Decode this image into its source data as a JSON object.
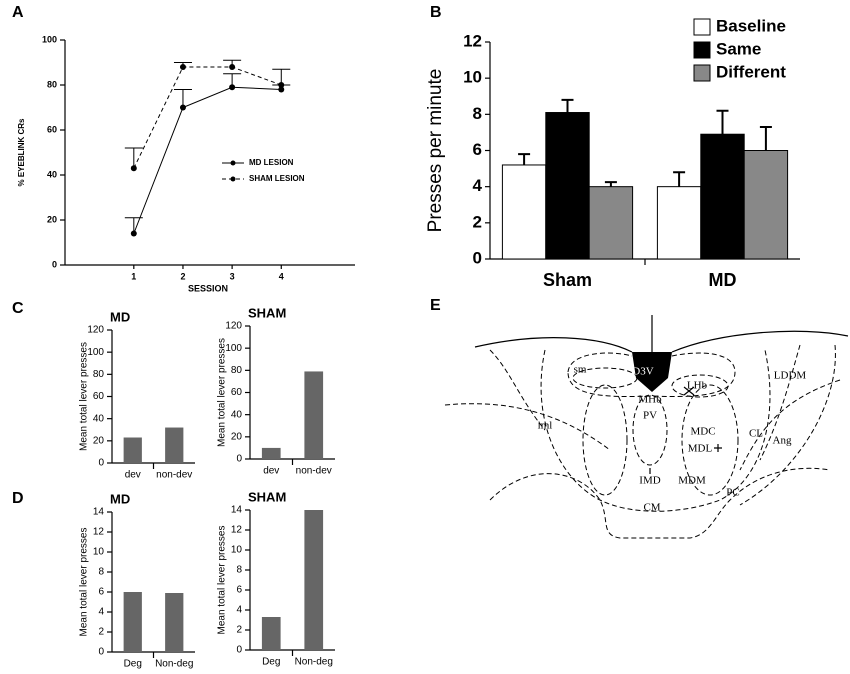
{
  "panel_labels": [
    "A",
    "B",
    "C",
    "D",
    "E"
  ],
  "chart_data": [
    {
      "type": "line",
      "xlabel": "SESSION",
      "ylabel": "% EYEBLINK CRs",
      "x": [
        1,
        2,
        3,
        4
      ],
      "xlim": [
        -0.4,
        5.5
      ],
      "xticks": [
        1,
        2,
        3,
        4
      ],
      "ylim": [
        0,
        100
      ],
      "yticks": [
        0,
        20,
        40,
        60,
        80,
        100
      ],
      "series": [
        {
          "name": "MD LESION",
          "color": "#000000",
          "linestyle": "solid",
          "values": [
            14,
            70,
            79,
            78
          ],
          "errors": [
            7,
            8,
            6,
            2
          ]
        },
        {
          "name": "SHAM LESION",
          "color": "#000000",
          "linestyle": "dashed",
          "values": [
            43,
            88,
            88,
            80
          ],
          "errors": [
            9,
            2,
            3,
            7
          ]
        }
      ]
    },
    {
      "type": "bar",
      "ylabel": "Presses per minute",
      "categories": [
        "Sham",
        "MD"
      ],
      "ylim": [
        0,
        12
      ],
      "yticks": [
        0,
        2,
        4,
        6,
        8,
        10,
        12
      ],
      "series": [
        {
          "name": "Baseline",
          "color": "#ffffff",
          "values": [
            5.2,
            4.0
          ],
          "errors": [
            0.6,
            0.8
          ]
        },
        {
          "name": "Same",
          "color": "#000000",
          "values": [
            8.1,
            6.9
          ],
          "errors": [
            0.7,
            1.3
          ]
        },
        {
          "name": "Different",
          "color": "#888888",
          "values": [
            4.0,
            6.0
          ],
          "errors": [
            0.25,
            1.3
          ]
        }
      ]
    },
    {
      "type": "bar",
      "title": "MD",
      "ylabel": "Mean total lever presses",
      "categories": [
        "dev",
        "non-dev"
      ],
      "values": [
        23,
        32
      ],
      "color": "#666666",
      "ylim": [
        0,
        120
      ],
      "yticks": [
        0,
        20,
        40,
        60,
        80,
        100,
        120
      ]
    },
    {
      "type": "bar",
      "title": "SHAM",
      "ylabel": "Mean total lever presses",
      "categories": [
        "dev",
        "non-dev"
      ],
      "values": [
        10,
        79
      ],
      "color": "#666666",
      "ylim": [
        0,
        120
      ],
      "yticks": [
        0,
        20,
        40,
        60,
        80,
        100,
        120
      ]
    },
    {
      "type": "bar",
      "title": "MD",
      "ylabel": "Mean total lever presses",
      "categories": [
        "Deg",
        "Non-deg"
      ],
      "values": [
        6,
        5.9
      ],
      "color": "#666666",
      "ylim": [
        0,
        14
      ],
      "yticks": [
        0,
        2,
        4,
        6,
        8,
        10,
        12,
        14
      ]
    },
    {
      "type": "bar",
      "title": "SHAM",
      "ylabel": "Mean total lever presses",
      "categories": [
        "Deg",
        "Non-deg"
      ],
      "values": [
        3.3,
        14
      ],
      "color": "#666666",
      "ylim": [
        0,
        14
      ],
      "yticks": [
        0,
        2,
        4,
        6,
        8,
        10,
        12,
        14
      ]
    }
  ],
  "diagram": {
    "labels": [
      "D3V",
      "sm",
      "MHb",
      "LHb",
      "PV",
      "LDDM",
      "iml",
      "MDC",
      "CL",
      "Ang",
      "MDL",
      "IMD",
      "MDM",
      "PC",
      "CM"
    ]
  }
}
